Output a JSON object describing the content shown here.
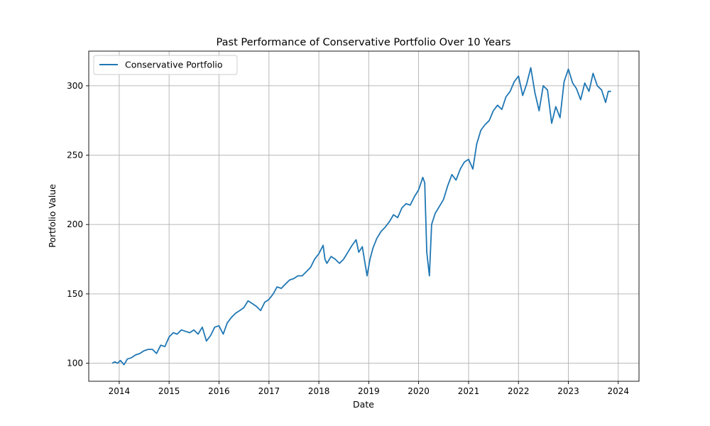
{
  "chart_data": {
    "type": "line",
    "title": "Past Performance of Conservative Portfolio Over 10 Years",
    "xlabel": "Date",
    "ylabel": "Portfolio Value",
    "xlim": [
      "2013-05-23",
      "2024-06-01"
    ],
    "ylim": [
      87,
      325
    ],
    "x_ticks": [
      "2014",
      "2015",
      "2016",
      "2017",
      "2018",
      "2019",
      "2020",
      "2021",
      "2022",
      "2023",
      "2024"
    ],
    "y_ticks": [
      100,
      150,
      200,
      250,
      300
    ],
    "grid": true,
    "legend": {
      "position": "upper-left"
    },
    "series": [
      {
        "name": "Conservative Portfolio",
        "color": "#1f77b4",
        "points": [
          [
            "2013-11-10",
            100
          ],
          [
            "2013-12-01",
            101
          ],
          [
            "2013-12-20",
            100
          ],
          [
            "2014-01-10",
            102
          ],
          [
            "2014-02-05",
            99
          ],
          [
            "2014-03-01",
            103
          ],
          [
            "2014-04-01",
            104
          ],
          [
            "2014-05-01",
            106
          ],
          [
            "2014-06-01",
            107
          ],
          [
            "2014-07-01",
            109
          ],
          [
            "2014-08-01",
            110
          ],
          [
            "2014-09-01",
            110
          ],
          [
            "2014-10-01",
            107
          ],
          [
            "2014-11-01",
            113
          ],
          [
            "2014-12-01",
            112
          ],
          [
            "2015-01-01",
            119
          ],
          [
            "2015-02-01",
            122
          ],
          [
            "2015-03-01",
            121
          ],
          [
            "2015-04-01",
            124
          ],
          [
            "2015-05-01",
            123
          ],
          [
            "2015-06-01",
            122
          ],
          [
            "2015-07-01",
            124
          ],
          [
            "2015-08-01",
            121
          ],
          [
            "2015-09-01",
            126
          ],
          [
            "2015-10-01",
            116
          ],
          [
            "2015-11-01",
            120
          ],
          [
            "2015-12-01",
            126
          ],
          [
            "2016-01-01",
            127
          ],
          [
            "2016-02-01",
            121
          ],
          [
            "2016-03-01",
            129
          ],
          [
            "2016-04-01",
            133
          ],
          [
            "2016-05-01",
            136
          ],
          [
            "2016-06-01",
            138
          ],
          [
            "2016-07-01",
            140
          ],
          [
            "2016-08-01",
            145
          ],
          [
            "2016-09-01",
            143
          ],
          [
            "2016-10-01",
            141
          ],
          [
            "2016-11-01",
            138
          ],
          [
            "2016-12-01",
            144
          ],
          [
            "2017-01-01",
            146
          ],
          [
            "2017-02-01",
            150
          ],
          [
            "2017-03-01",
            155
          ],
          [
            "2017-04-01",
            154
          ],
          [
            "2017-05-01",
            157
          ],
          [
            "2017-06-01",
            160
          ],
          [
            "2017-07-01",
            161
          ],
          [
            "2017-08-01",
            163
          ],
          [
            "2017-09-01",
            163
          ],
          [
            "2017-10-01",
            166
          ],
          [
            "2017-11-01",
            169
          ],
          [
            "2017-12-01",
            175
          ],
          [
            "2018-01-01",
            179
          ],
          [
            "2018-02-01",
            185
          ],
          [
            "2018-02-15",
            175
          ],
          [
            "2018-03-01",
            172
          ],
          [
            "2018-04-01",
            177
          ],
          [
            "2018-05-01",
            175
          ],
          [
            "2018-06-01",
            172
          ],
          [
            "2018-07-01",
            175
          ],
          [
            "2018-08-01",
            180
          ],
          [
            "2018-09-01",
            185
          ],
          [
            "2018-10-01",
            189
          ],
          [
            "2018-10-20",
            180
          ],
          [
            "2018-11-15",
            184
          ],
          [
            "2018-12-20",
            163
          ],
          [
            "2019-01-10",
            175
          ],
          [
            "2019-02-01",
            183
          ],
          [
            "2019-03-01",
            190
          ],
          [
            "2019-04-01",
            195
          ],
          [
            "2019-05-01",
            198
          ],
          [
            "2019-06-01",
            202
          ],
          [
            "2019-07-01",
            207
          ],
          [
            "2019-08-01",
            205
          ],
          [
            "2019-09-01",
            212
          ],
          [
            "2019-10-01",
            215
          ],
          [
            "2019-11-01",
            214
          ],
          [
            "2019-12-01",
            220
          ],
          [
            "2020-01-01",
            225
          ],
          [
            "2020-02-01",
            234
          ],
          [
            "2020-02-15",
            230
          ],
          [
            "2020-03-01",
            180
          ],
          [
            "2020-03-20",
            163
          ],
          [
            "2020-04-05",
            200
          ],
          [
            "2020-05-01",
            208
          ],
          [
            "2020-06-01",
            213
          ],
          [
            "2020-07-01",
            218
          ],
          [
            "2020-08-01",
            228
          ],
          [
            "2020-09-01",
            236
          ],
          [
            "2020-10-01",
            232
          ],
          [
            "2020-11-01",
            240
          ],
          [
            "2020-12-01",
            245
          ],
          [
            "2021-01-01",
            247
          ],
          [
            "2021-02-01",
            240
          ],
          [
            "2021-03-01",
            258
          ],
          [
            "2021-04-01",
            268
          ],
          [
            "2021-05-01",
            272
          ],
          [
            "2021-06-01",
            275
          ],
          [
            "2021-07-01",
            282
          ],
          [
            "2021-08-01",
            286
          ],
          [
            "2021-09-01",
            283
          ],
          [
            "2021-10-01",
            292
          ],
          [
            "2021-11-01",
            296
          ],
          [
            "2021-12-01",
            303
          ],
          [
            "2022-01-01",
            307
          ],
          [
            "2022-02-01",
            293
          ],
          [
            "2022-03-01",
            301
          ],
          [
            "2022-04-01",
            313
          ],
          [
            "2022-05-01",
            295
          ],
          [
            "2022-06-01",
            282
          ],
          [
            "2022-07-01",
            300
          ],
          [
            "2022-08-01",
            297
          ],
          [
            "2022-09-01",
            273
          ],
          [
            "2022-10-01",
            285
          ],
          [
            "2022-11-01",
            277
          ],
          [
            "2022-12-01",
            303
          ],
          [
            "2023-01-01",
            312
          ],
          [
            "2023-02-01",
            302
          ],
          [
            "2023-03-01",
            298
          ],
          [
            "2023-04-01",
            290
          ],
          [
            "2023-05-01",
            302
          ],
          [
            "2023-06-01",
            296
          ],
          [
            "2023-07-01",
            309
          ],
          [
            "2023-08-01",
            300
          ],
          [
            "2023-09-01",
            297
          ],
          [
            "2023-10-01",
            288
          ],
          [
            "2023-10-20",
            296
          ],
          [
            "2023-11-10",
            296
          ]
        ]
      }
    ]
  }
}
